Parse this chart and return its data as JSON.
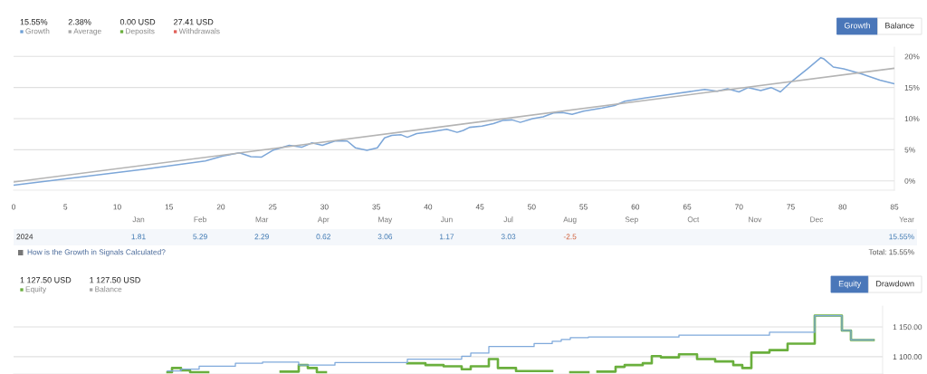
{
  "chart_data": [
    {
      "type": "other",
      "categories": [
        "Growth",
        "Average",
        "Deposits",
        "Withdrawals"
      ],
      "value_labels": [
        "15.55%",
        "2.38%",
        "0.00 USD",
        "27.41 USD"
      ],
      "colors": [
        "#6d9fd5",
        "#a9a9a9",
        "#6aaf3d",
        "#e0605a"
      ],
      "annotations": [
        "Growth",
        "Balance"
      ]
    },
    {
      "type": "line",
      "series": [
        {
          "color": "#7ca6d8",
          "x": [
            0,
            12.7,
            18.5,
            20.2,
            21.8,
            22.9,
            23.9,
            25.0,
            26.6,
            27.8,
            28.8,
            29.8,
            31.0,
            32.2,
            33.0,
            34.1,
            35.1,
            35.8,
            36.5,
            37.4,
            38.0,
            38.9,
            40.3,
            41.8,
            42.8,
            43.4,
            44.0,
            45.2,
            46.3,
            47.2,
            48.1,
            48.9,
            50.1,
            51.1,
            52.1,
            53.0,
            53.9,
            55.0,
            56.8,
            58.0,
            59.0,
            60.9,
            63.8,
            65.5,
            66.7,
            67.9,
            68.9,
            70.0,
            70.9,
            72.1,
            73.1,
            74.0,
            75.1,
            76.6,
            77.9,
            78.2,
            79.1,
            80.1,
            81.8,
            83.6,
            85
          ],
          "values": [
            -0.7,
            1.9,
            3.2,
            4.0,
            4.5,
            3.9,
            3.8,
            4.9,
            5.7,
            5.4,
            6.1,
            5.7,
            6.4,
            6.4,
            5.3,
            4.9,
            5.3,
            6.9,
            7.3,
            7.4,
            7.0,
            7.6,
            7.9,
            8.3,
            7.8,
            8.1,
            8.6,
            8.8,
            9.2,
            9.7,
            9.8,
            9.4,
            10.0,
            10.3,
            10.9,
            11.0,
            10.7,
            11.2,
            11.7,
            12.1,
            12.8,
            13.3,
            14.0,
            14.4,
            14.7,
            14.4,
            14.8,
            14.3,
            15.0,
            14.5,
            15.0,
            14.3,
            16.0,
            18.0,
            19.8,
            19.6,
            18.3,
            18.0,
            17.2,
            16.2,
            15.6
          ]
        },
        {
          "color": "#b4b4b4",
          "x": [
            0,
            85
          ],
          "values": [
            -0.2,
            18.1
          ]
        }
      ],
      "xlim": [
        0,
        85
      ],
      "xticks": [
        0,
        5,
        10,
        15,
        20,
        25,
        30,
        35,
        40,
        45,
        50,
        55,
        60,
        65,
        70,
        75,
        80,
        85
      ],
      "ylim": [
        -1.5,
        21.5
      ],
      "yticks": [
        {
          "value": 0,
          "label": "0%"
        },
        {
          "value": 5,
          "label": "5%"
        },
        {
          "value": 10,
          "label": "10%"
        },
        {
          "value": 15,
          "label": "15%"
        },
        {
          "value": 20,
          "label": "20%"
        }
      ],
      "grid": "y"
    },
    {
      "type": "other",
      "categories": [
        "Jan",
        "Feb",
        "Mar",
        "Apr",
        "May",
        "Jun",
        "Jul",
        "Aug",
        "Sep",
        "Oct",
        "Nov",
        "Dec",
        "Year"
      ],
      "y_categories": [
        "2024"
      ],
      "cell_labels": [
        [
          "1.81",
          "5.29",
          "2.29",
          "0.62",
          "3.06",
          "1.17",
          "3.03",
          "-2.5",
          null,
          null,
          null,
          null,
          "15.55%"
        ]
      ],
      "colors": [
        "#3e78b2",
        "#3e78b2",
        "#3e78b2",
        "#3e78b2",
        "#3e78b2",
        "#3e78b2",
        "#3e78b2",
        "#d0603c",
        null,
        null,
        null,
        null,
        "#3e78b2"
      ],
      "annotations": [
        "How is the Growth in Signals Calculated?",
        "Total: 15.55%"
      ]
    },
    {
      "type": "other",
      "categories": [
        "Equity",
        "Balance"
      ],
      "value_labels": [
        "1 127.50 USD",
        "1 127.50 USD"
      ],
      "colors": [
        "#6aaf3d",
        "#a9a9a9"
      ],
      "annotations": [
        "Equity",
        "Drawdown"
      ]
    },
    {
      "type": "step",
      "categories": [
        null,
        null,
        null,
        null,
        null,
        null,
        null,
        null,
        null,
        null,
        null,
        null,
        null,
        null,
        null,
        null,
        null,
        null,
        null,
        null,
        null,
        null,
        null,
        null,
        null,
        null,
        null,
        null,
        null,
        null,
        null,
        null,
        null,
        null,
        null,
        null,
        null,
        null,
        null,
        null,
        null,
        null,
        null,
        null,
        null,
        null,
        null,
        null,
        null,
        null,
        null,
        null,
        null,
        null,
        null,
        null,
        null,
        null,
        null,
        null,
        null,
        null,
        null,
        null,
        null,
        null,
        null,
        null,
        null,
        null,
        null,
        null,
        null,
        null,
        null,
        null,
        null,
        null,
        null
      ],
      "series": [
        {
          "color": "#7fa9db",
          "values": [
            1076,
            1076,
            1079,
            1079,
            1084,
            1084,
            1084,
            1084,
            1089,
            1089,
            1089,
            1091,
            1091,
            1091,
            1091,
            1086,
            1086,
            1086,
            1086,
            1090,
            1090,
            1090,
            1090,
            1090,
            1090,
            1090,
            1090,
            1096,
            1096,
            1096,
            1096,
            1096,
            1096,
            1101,
            1106,
            1106,
            1117,
            1117,
            1117,
            1117,
            1117,
            1122,
            1122,
            1126,
            1129,
            1132,
            1132,
            1133,
            1133,
            1133,
            1133,
            1133,
            1133,
            1133,
            1133,
            1133,
            1133,
            1136,
            1136,
            1136,
            1136,
            1136,
            1136,
            1136,
            1136,
            1136,
            1136,
            1141,
            1141,
            1141,
            1141,
            1141,
            1169,
            1169,
            1169,
            1144,
            1128,
            1128,
            1128
          ]
        },
        {
          "color": "#6aaf3d",
          "values": [
            1074,
            1081,
            1077,
            1074,
            1074,
            null,
            null,
            null,
            null,
            null,
            null,
            null,
            null,
            1075,
            1075,
            1086,
            1081,
            1074,
            null,
            null,
            null,
            null,
            null,
            null,
            null,
            null,
            null,
            1089,
            1089,
            1086,
            1086,
            1084,
            1084,
            1079,
            1084,
            1084,
            1096,
            1081,
            1081,
            1076,
            1076,
            1076,
            1076,
            null,
            null,
            1074,
            1074,
            null,
            1075,
            1075,
            1083,
            1086,
            1086,
            1089,
            1101,
            1099,
            1099,
            1104,
            1104,
            1096,
            1096,
            1092,
            1092,
            1086,
            1081,
            1107,
            1107,
            1111,
            1111,
            1122,
            1122,
            1122,
            1169,
            1169,
            1169,
            1144,
            1128,
            1128,
            1128
          ]
        }
      ],
      "ylim": [
        1071,
        1185
      ],
      "yticks": [
        {
          "value": 1100,
          "label": "1 100.00"
        },
        {
          "value": 1150,
          "label": "1 150.00"
        }
      ],
      "grid": "y",
      "tick_labels": "y"
    }
  ]
}
